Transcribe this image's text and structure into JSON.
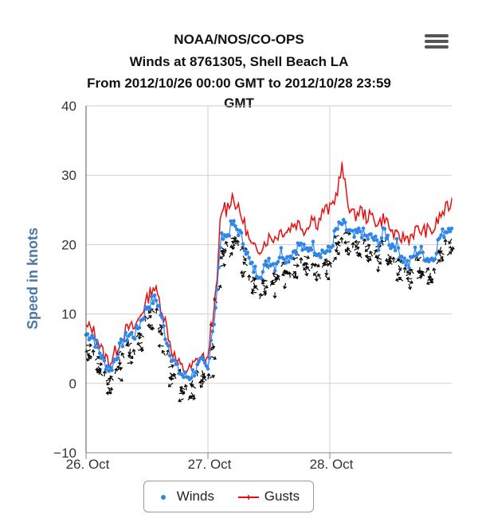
{
  "menu": {
    "icon": "hamburger-menu-icon"
  },
  "chart_data": {
    "type": "line",
    "title_lines": [
      "NOAA/NOS/CO-OPS",
      "Winds at 8761305, Shell Beach LA",
      "From 2012/10/26 00:00 GMT to 2012/10/28 23:59",
      "GMT"
    ],
    "ylabel": "Speed in knots",
    "xlabel": "",
    "ylim": [
      -10,
      40
    ],
    "yticks": [
      -10,
      0,
      10,
      20,
      30,
      40
    ],
    "ytick_labels": [
      "−10",
      "0",
      "10",
      "20",
      "30",
      "40"
    ],
    "xlim": [
      0,
      3
    ],
    "xticks": [
      0,
      1,
      2
    ],
    "xtick_labels": [
      "26. Oct",
      "27. Oct",
      "28. Oct"
    ],
    "x_unit": "days since 2012/10/26 00:00 GMT",
    "grid": true,
    "legend_position": "bottom-center",
    "legend": [
      {
        "name": "Winds",
        "marker": "dot",
        "color": "#2f86e8"
      },
      {
        "name": "Gusts",
        "marker": "line",
        "color": "#e61010"
      }
    ],
    "colors": {
      "winds": "#2f86e8",
      "gusts": "#e61010",
      "direction_arrows": "#000000",
      "ylabel": "#4a78a6"
    },
    "series": [
      {
        "name": "Winds",
        "x": [
          0.0,
          0.05,
          0.1,
          0.15,
          0.2,
          0.25,
          0.3,
          0.35,
          0.4,
          0.45,
          0.5,
          0.55,
          0.58,
          0.6,
          0.65,
          0.7,
          0.75,
          0.8,
          0.85,
          0.9,
          0.95,
          1.0,
          1.02,
          1.05,
          1.08,
          1.1,
          1.13,
          1.15,
          1.2,
          1.25,
          1.3,
          1.35,
          1.4,
          1.45,
          1.5,
          1.55,
          1.6,
          1.65,
          1.7,
          1.75,
          1.8,
          1.85,
          1.9,
          1.95,
          2.0,
          2.05,
          2.1,
          2.15,
          2.2,
          2.25,
          2.3,
          2.35,
          2.4,
          2.45,
          2.5,
          2.55,
          2.6,
          2.65,
          2.7,
          2.75,
          2.8,
          2.85,
          2.9,
          2.95,
          3.0
        ],
        "y": [
          7,
          7,
          5,
          3,
          2,
          4,
          6,
          7,
          7,
          9,
          11,
          12,
          12,
          11,
          7,
          4,
          2,
          1,
          1,
          2,
          3,
          2,
          6,
          9,
          14,
          20,
          22,
          21,
          23,
          22,
          20,
          17,
          16,
          16,
          18,
          17,
          19,
          18,
          19,
          20,
          19,
          20,
          19,
          19,
          19,
          22,
          23,
          22,
          21,
          22,
          21,
          21,
          20,
          22,
          20,
          20,
          18,
          17,
          19,
          19,
          18,
          18,
          21,
          22,
          23
        ]
      },
      {
        "name": "Gusts",
        "x": [
          0.0,
          0.05,
          0.1,
          0.15,
          0.2,
          0.25,
          0.3,
          0.35,
          0.4,
          0.45,
          0.5,
          0.55,
          0.58,
          0.6,
          0.65,
          0.7,
          0.75,
          0.8,
          0.85,
          0.9,
          0.95,
          1.0,
          1.02,
          1.05,
          1.08,
          1.1,
          1.13,
          1.15,
          1.2,
          1.25,
          1.3,
          1.35,
          1.4,
          1.45,
          1.5,
          1.55,
          1.6,
          1.65,
          1.7,
          1.75,
          1.8,
          1.85,
          1.9,
          1.95,
          2.0,
          2.05,
          2.1,
          2.15,
          2.2,
          2.25,
          2.3,
          2.35,
          2.4,
          2.45,
          2.5,
          2.55,
          2.6,
          2.65,
          2.7,
          2.75,
          2.8,
          2.85,
          2.9,
          2.95,
          3.0
        ],
        "y": [
          8,
          8,
          6,
          4,
          3,
          5,
          7,
          8,
          8,
          10,
          12,
          14,
          13,
          12,
          9,
          5,
          3,
          2,
          2,
          3,
          4,
          3,
          8,
          10,
          16,
          23,
          26,
          25,
          27,
          25,
          23,
          20,
          19,
          20,
          21,
          21,
          22,
          22,
          23,
          23,
          22,
          24,
          23,
          25,
          25,
          27,
          31,
          26,
          24,
          25,
          24,
          24,
          23,
          24,
          22,
          21,
          21,
          21,
          22,
          22,
          22,
          22,
          24,
          25,
          26
        ]
      }
    ]
  }
}
